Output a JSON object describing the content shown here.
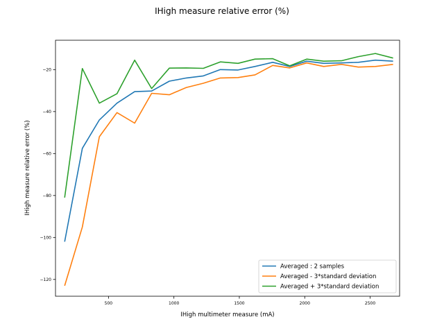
{
  "chart_data": {
    "type": "line",
    "title": "IHigh measure relative error (%)",
    "xlabel": "IHigh multimeter measure (mA)",
    "ylabel": "IHigh measure relative error (%)",
    "xlim": [
      95,
      2725
    ],
    "ylim": [
      -128,
      -6
    ],
    "xticks": [
      500,
      1000,
      1500,
      2000,
      2500
    ],
    "yticks": [
      -120,
      -100,
      -80,
      -60,
      -40,
      -20
    ],
    "grid": false,
    "legend_position": "lower right",
    "x": [
      165,
      300,
      430,
      565,
      700,
      830,
      965,
      1095,
      1225,
      1355,
      1490,
      1620,
      1755,
      1885,
      2015,
      2145,
      2280,
      2410,
      2540,
      2675
    ],
    "series": [
      {
        "name": "Averaged : 2 samples",
        "color": "#1f77b4",
        "values": [
          -102,
          -57.5,
          -44,
          -36,
          -30.5,
          -30.2,
          -25.5,
          -24,
          -23,
          -20,
          -20.2,
          -18.5,
          -16.5,
          -18.5,
          -16,
          -17,
          -16.8,
          -16.5,
          -15.5,
          -16
        ]
      },
      {
        "name": "Averaged - 3*standard deviation",
        "color": "#ff7f0e",
        "values": [
          -123,
          -95,
          -52,
          -40.5,
          -45.5,
          -31.3,
          -32,
          -28.5,
          -26.5,
          -24,
          -23.8,
          -22.5,
          -18,
          -19.2,
          -16.8,
          -18.5,
          -17.5,
          -18.8,
          -18.5,
          -17.5
        ]
      },
      {
        "name": "Averaged + 3*standard deviation",
        "color": "#2ca02c",
        "values": [
          -81,
          -19.5,
          -36,
          -31.5,
          -15.5,
          -29,
          -19.3,
          -19.2,
          -19.4,
          -16.3,
          -17,
          -15,
          -14.8,
          -18.2,
          -15,
          -16,
          -15.8,
          -13.8,
          -12.3,
          -14.5
        ]
      }
    ]
  }
}
